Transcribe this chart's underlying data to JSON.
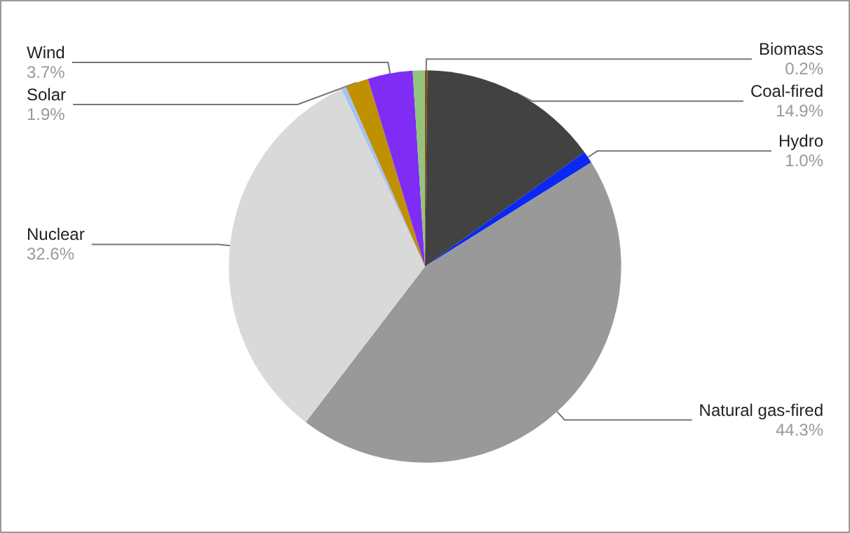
{
  "chart_data": {
    "type": "pie",
    "categories": [
      "Biomass",
      "Coal-fired",
      "Hydro",
      "Natural gas-fired",
      "Nuclear",
      null,
      "Solar",
      "Wind",
      null
    ],
    "values": [
      0.2,
      14.9,
      1.0,
      44.3,
      32.6,
      0.4,
      1.9,
      3.7,
      1.0
    ],
    "value_labels": [
      "0.2%",
      "14.9%",
      "1.0%",
      "44.3%",
      "32.6%",
      null,
      "1.9%",
      "3.7%",
      null
    ],
    "colors": [
      "#8b4a14",
      "#424242",
      "#0a28f2",
      "#999999",
      "#d9d9d9",
      "#a4c2f4",
      "#bf9000",
      "#7f2cf5",
      "#93c47d"
    ],
    "legend": false
  }
}
